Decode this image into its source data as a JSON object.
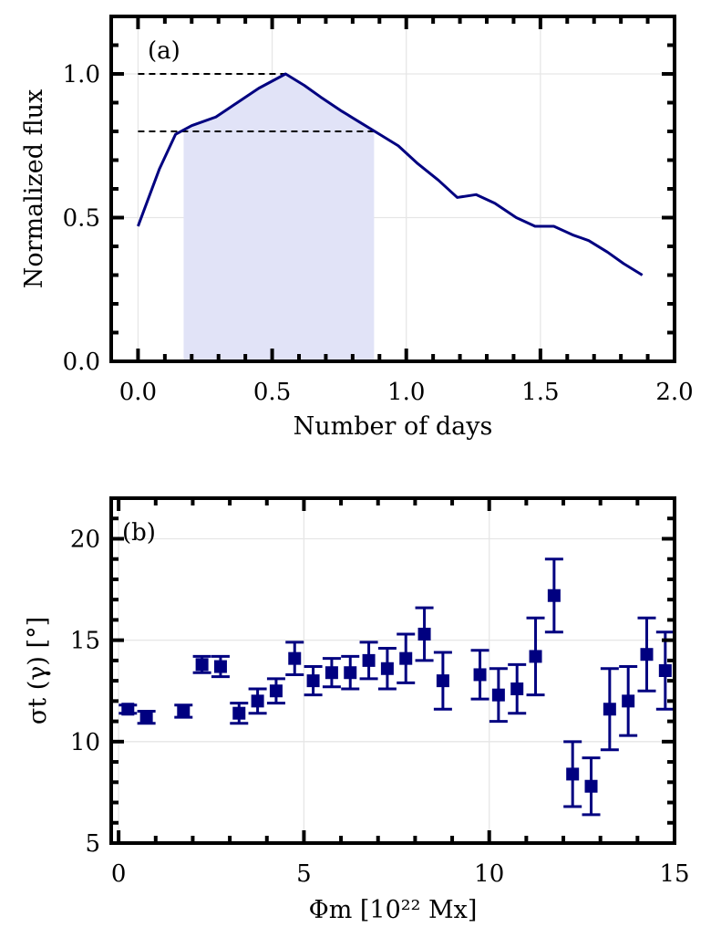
{
  "chart_data": [
    {
      "type": "line",
      "panel_label": "(a)",
      "xlabel": "Number of days",
      "ylabel": "Normalized flux",
      "xlim": [
        -0.1,
        2.0
      ],
      "ylim": [
        0.0,
        1.2
      ],
      "xticks": [
        0.0,
        0.5,
        1.0,
        1.5,
        2.0
      ],
      "xtick_labels": [
        "0.0",
        "0.5",
        "1.0",
        "1.5",
        "2.0"
      ],
      "yticks": [
        0.0,
        0.5,
        1.0
      ],
      "ytick_labels": [
        "0.0",
        "0.5",
        "1.0"
      ],
      "grid": true,
      "x": [
        0.0,
        0.08,
        0.14,
        0.2,
        0.29,
        0.37,
        0.45,
        0.55,
        0.62,
        0.68,
        0.76,
        0.83,
        0.9,
        0.97,
        1.04,
        1.12,
        1.19,
        1.26,
        1.33,
        1.41,
        1.48,
        1.55,
        1.62,
        1.68,
        1.75,
        1.81,
        1.88
      ],
      "y": [
        0.47,
        0.67,
        0.79,
        0.82,
        0.85,
        0.9,
        0.95,
        1.0,
        0.96,
        0.92,
        0.87,
        0.83,
        0.79,
        0.75,
        0.69,
        0.63,
        0.57,
        0.58,
        0.55,
        0.5,
        0.47,
        0.47,
        0.44,
        0.42,
        0.38,
        0.34,
        0.3
      ],
      "shaded_interval": [
        0.17,
        0.88
      ],
      "reference_lines": [
        {
          "y": 1.0,
          "x_range": [
            0.0,
            0.55
          ]
        },
        {
          "y": 0.8,
          "x_range": [
            0.0,
            0.88
          ]
        }
      ],
      "color": "#000080",
      "shade_color": "#e1e3f7"
    },
    {
      "type": "scatter",
      "panel_label": "(b)",
      "xlabel": "Φm [10²² Mx]",
      "ylabel": "σt (γ) [°]",
      "xlim": [
        -0.2,
        15.0
      ],
      "ylim": [
        5,
        22
      ],
      "xticks": [
        0,
        5,
        10,
        15
      ],
      "xtick_labels": [
        "0",
        "5",
        "10",
        "15"
      ],
      "yticks": [
        5,
        10,
        15,
        20
      ],
      "ytick_labels": [
        "5",
        "10",
        "15",
        "20"
      ],
      "grid": true,
      "marker": "square",
      "color": "#000080",
      "points": [
        {
          "x": 0.25,
          "y": 11.6,
          "err": 0.2
        },
        {
          "x": 0.75,
          "y": 11.2,
          "err": 0.3
        },
        {
          "x": 1.75,
          "y": 11.5,
          "err": 0.3
        },
        {
          "x": 2.25,
          "y": 13.8,
          "err": 0.4
        },
        {
          "x": 2.75,
          "y": 13.7,
          "err": 0.5
        },
        {
          "x": 3.25,
          "y": 11.4,
          "err": 0.5
        },
        {
          "x": 3.75,
          "y": 12.0,
          "err": 0.6
        },
        {
          "x": 4.25,
          "y": 12.5,
          "err": 0.6
        },
        {
          "x": 4.75,
          "y": 14.1,
          "err": 0.8
        },
        {
          "x": 5.25,
          "y": 13.0,
          "err": 0.7
        },
        {
          "x": 5.75,
          "y": 13.4,
          "err": 0.7
        },
        {
          "x": 6.25,
          "y": 13.4,
          "err": 0.8
        },
        {
          "x": 6.75,
          "y": 14.0,
          "err": 0.9
        },
        {
          "x": 7.25,
          "y": 13.6,
          "err": 1.0
        },
        {
          "x": 7.75,
          "y": 14.1,
          "err": 1.2
        },
        {
          "x": 8.25,
          "y": 15.3,
          "err": 1.3
        },
        {
          "x": 8.75,
          "y": 13.0,
          "err": 1.4
        },
        {
          "x": 9.75,
          "y": 13.3,
          "err": 1.2
        },
        {
          "x": 10.25,
          "y": 12.3,
          "err": 1.3
        },
        {
          "x": 10.75,
          "y": 12.6,
          "err": 1.2
        },
        {
          "x": 11.25,
          "y": 14.2,
          "err": 1.9
        },
        {
          "x": 11.75,
          "y": 17.2,
          "err": 1.8
        },
        {
          "x": 12.25,
          "y": 8.4,
          "err": 1.6
        },
        {
          "x": 12.75,
          "y": 7.8,
          "err": 1.4
        },
        {
          "x": 13.25,
          "y": 11.6,
          "err": 2.0
        },
        {
          "x": 13.75,
          "y": 12.0,
          "err": 1.7
        },
        {
          "x": 14.25,
          "y": 14.3,
          "err": 1.8
        },
        {
          "x": 14.75,
          "y": 13.5,
          "err": 1.9
        }
      ]
    }
  ]
}
